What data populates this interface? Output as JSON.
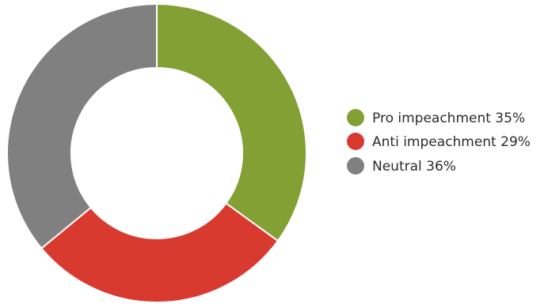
{
  "chart_data": {
    "type": "pie",
    "donut": true,
    "title": "",
    "slices": [
      {
        "label": "Pro impeachment",
        "value": 35,
        "display": "Pro impeachment 35%",
        "color": "#82a033"
      },
      {
        "label": "Anti impeachment",
        "value": 29,
        "display": "Anti impeachment 29%",
        "color": "#d93a30"
      },
      {
        "label": "Neutral",
        "value": 36,
        "display": "Neutral 36%",
        "color": "#808080"
      }
    ],
    "legend_position": "right"
  }
}
